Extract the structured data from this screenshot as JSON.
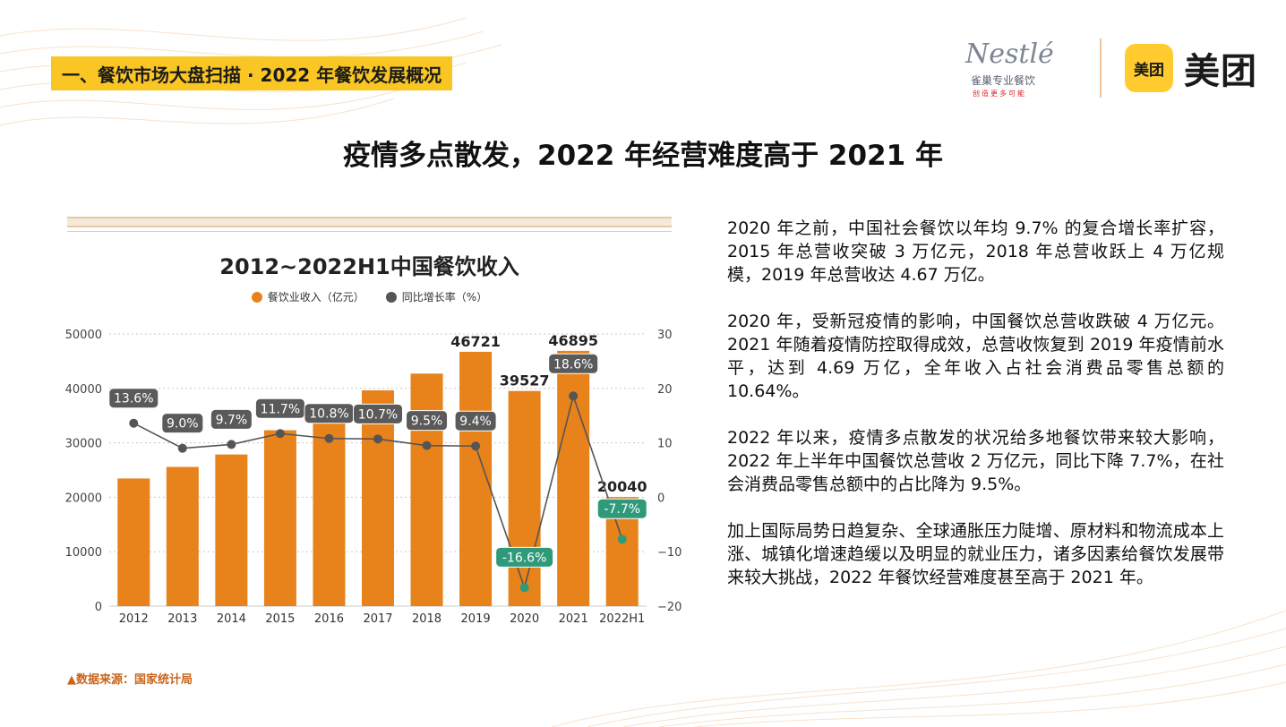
{
  "section_tag": "一、餐饮市场大盘扫描 · 2022 年餐饮发展概况",
  "logos": {
    "nestle_brand": "Nestlé",
    "nestle_sub": "雀巢专业餐饮",
    "nestle_tagline": "创造更多可能",
    "meituan_badge": "美团",
    "meituan_text": "美团"
  },
  "headline": "疫情多点散发，2022 年经营难度高于 2021 年",
  "source": "▲数据来源：国家统计局",
  "paragraphs": [
    "2020 年之前，中国社会餐饮以年均 9.7% 的复合增长率扩容，2015 年总营收突破 3 万亿元，2018 年总营收跃上 4 万亿规模，2019 年总营收达 4.67 万亿。",
    "2020 年，受新冠疫情的影响，中国餐饮总营收跌破 4 万亿元。2021 年随着疫情防控取得成效，总营收恢复到 2019 年疫情前水平，达到 4.69 万亿，全年收入占社会消费品零售总额的10.64%。",
    "2022 年以来，疫情多点散发的状况给多地餐饮带来较大影响，2022 年上半年中国餐饮总营收 2 万亿元，同比下降 7.7%，在社会消费品零售总额中的占比降为 9.5%。",
    "加上国际局势日趋复杂、全球通胀压力陡增、原材料和物流成本上涨、城镇化增速趋缓以及明显的就业压力，诸多因素给餐饮发展带来较大挑战，2022 年餐饮经营难度甚至高于 2021 年。"
  ],
  "colors": {
    "bar": "#e8821a",
    "line": "#555555",
    "positive_label": "#5a5a5a",
    "negative_label": "#2f9a7a"
  },
  "chart_data": {
    "type": "bar",
    "title": "2012~2022H1中国餐饮收入",
    "categories": [
      "2012",
      "2013",
      "2014",
      "2015",
      "2016",
      "2017",
      "2018",
      "2019",
      "2020",
      "2021",
      "2022H1"
    ],
    "series": [
      {
        "name": "餐饮业收入（亿元）",
        "type": "bar",
        "axis": "left",
        "values": [
          23448,
          25569,
          27860,
          32310,
          35799,
          39644,
          42716,
          46721,
          39527,
          46895,
          20040
        ],
        "data_labels": {
          "7": "46721",
          "8": "39527",
          "9": "46895",
          "10": "20040"
        }
      },
      {
        "name": "同比增长率（%）",
        "type": "line",
        "axis": "right",
        "values": [
          13.6,
          9.0,
          9.7,
          11.7,
          10.8,
          10.7,
          9.5,
          9.4,
          -16.6,
          18.6,
          -7.7
        ],
        "labels": [
          "13.6%",
          "9.0%",
          "9.7%",
          "11.7%",
          "10.8%",
          "10.7%",
          "9.5%",
          "9.4%",
          "-16.6%",
          "18.6%",
          "-7.7%"
        ]
      }
    ],
    "y_left": {
      "min": 0,
      "max": 50000,
      "ticks": [
        "0",
        "10000",
        "20000",
        "30000",
        "40000",
        "50000"
      ]
    },
    "y_right": {
      "min": -20,
      "max": 30,
      "ticks": [
        "-20",
        "-10",
        "0",
        "10",
        "20",
        "30"
      ]
    },
    "grid": true,
    "legend": "top-center"
  }
}
